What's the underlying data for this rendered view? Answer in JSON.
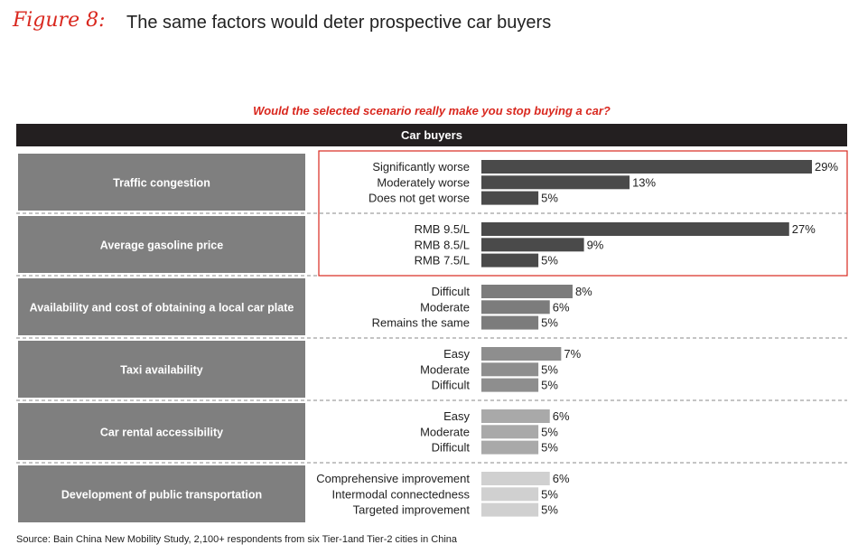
{
  "figure_label": "Figure 8:",
  "title": "The same factors would deter prospective car buyers",
  "question": "Would the selected scenario really make you stop buying a car?",
  "header": "Car buyers",
  "source": "Source: Bain China New Mobility Study, 2,100+ respondents from six Tier-1and Tier-2 cities in China",
  "highlight_color": "#d9281f",
  "chart_data": {
    "type": "bar",
    "orientation": "horizontal",
    "unit": "%",
    "xlim": [
      0,
      29
    ],
    "groups": [
      {
        "name": "Traffic congestion",
        "color": "#4a4a4a",
        "highlighted": true,
        "categories": [
          "Significantly worse",
          "Moderately worse",
          "Does not get worse"
        ],
        "values": [
          29,
          13,
          5
        ]
      },
      {
        "name": "Average gasoline price",
        "color": "#4a4a4a",
        "highlighted": true,
        "categories": [
          "RMB 9.5/L",
          "RMB 8.5/L",
          "RMB 7.5/L"
        ],
        "values": [
          27,
          9,
          5
        ]
      },
      {
        "name": "Availability and cost of obtaining a local car plate",
        "color": "#7c7c7c",
        "highlighted": false,
        "categories": [
          "Difficult",
          "Moderate",
          "Remains the same"
        ],
        "values": [
          8,
          6,
          5
        ]
      },
      {
        "name": "Taxi availability",
        "color": "#8e8e8e",
        "highlighted": false,
        "categories": [
          "Easy",
          "Moderate",
          "Difficult"
        ],
        "values": [
          7,
          5,
          5
        ]
      },
      {
        "name": "Car rental accessibility",
        "color": "#a9a9a9",
        "highlighted": false,
        "categories": [
          "Easy",
          "Moderate",
          "Difficult"
        ],
        "values": [
          6,
          5,
          5
        ]
      },
      {
        "name": "Development of public transportation",
        "color": "#d0d0d0",
        "highlighted": false,
        "categories": [
          "Comprehensive improvement",
          "Intermodal connectedness",
          "Targeted improvement"
        ],
        "values": [
          6,
          5,
          5
        ]
      }
    ]
  }
}
